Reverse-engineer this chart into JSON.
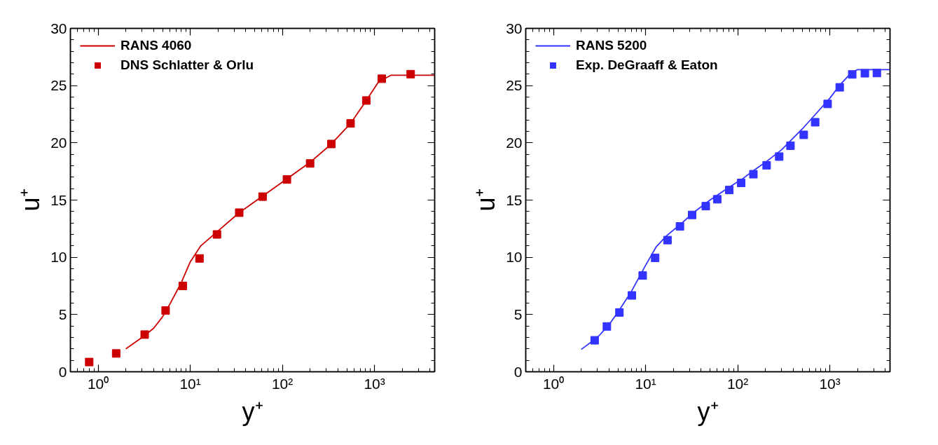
{
  "chart_data": [
    {
      "type": "line",
      "xlabel": "y⁺",
      "ylabel": "u⁺",
      "log": "x",
      "xlim": [
        0.5,
        4500
      ],
      "ylim": [
        0,
        30
      ],
      "xticks": [
        {
          "value": 1,
          "label": "10⁰"
        },
        {
          "value": 10,
          "label": "10¹"
        },
        {
          "value": 100,
          "label": "10²"
        },
        {
          "value": 1000,
          "label": "10³"
        }
      ],
      "yticks": [
        0,
        5,
        10,
        15,
        20,
        25,
        30
      ],
      "grid": false,
      "legend": "top left",
      "series": [
        {
          "name": "RANS 4060",
          "type": "line",
          "color": "#cc0000",
          "line_style": "solid",
          "marker": "none",
          "x": [
            2,
            3,
            4,
            5,
            6,
            8,
            10,
            13,
            20,
            34,
            60,
            110,
            200,
            340,
            550,
            800,
            1100,
            1500,
            4500
          ],
          "values": [
            2.0,
            3.0,
            3.8,
            4.8,
            5.9,
            7.8,
            9.6,
            11.0,
            12.3,
            13.9,
            15.3,
            16.8,
            18.3,
            19.9,
            21.7,
            23.6,
            25.3,
            25.9,
            25.9
          ]
        },
        {
          "name": "DNS Schlatter & Orlu",
          "type": "scatter",
          "color": "#cc0000",
          "marker": "square",
          "x": [
            0.8,
            1.57,
            3.2,
            5.4,
            8.3,
            12.6,
            19.5,
            34,
            61,
            112,
            200,
            340,
            550,
            815,
            1200,
            2470
          ],
          "values": [
            0.85,
            1.6,
            3.25,
            5.35,
            7.5,
            9.9,
            12.0,
            13.9,
            15.3,
            16.8,
            18.2,
            19.9,
            21.7,
            23.7,
            25.6,
            26.0
          ]
        }
      ]
    },
    {
      "type": "line",
      "xlabel": "y⁺",
      "ylabel": "u⁺",
      "log": "x",
      "xlim": [
        0.5,
        4500
      ],
      "ylim": [
        0,
        30
      ],
      "xticks": [
        {
          "value": 1,
          "label": "10⁰"
        },
        {
          "value": 10,
          "label": "10¹"
        },
        {
          "value": 100,
          "label": "10²"
        },
        {
          "value": 1000,
          "label": "10³"
        }
      ],
      "yticks": [
        0,
        5,
        10,
        15,
        20,
        25,
        30
      ],
      "grid": false,
      "legend": "top left",
      "series": [
        {
          "name": "RANS 5200",
          "type": "line",
          "color": "#3333ff",
          "line_style": "solid",
          "marker": "none",
          "x": [
            2,
            3,
            4,
            5,
            7,
            10,
            13,
            17,
            24,
            33,
            50,
            80,
            110,
            150,
            200,
            300,
            500,
            700,
            1000,
            1300,
            1700,
            2000,
            4500
          ],
          "values": [
            1.95,
            3.0,
            4.1,
            5.2,
            7.0,
            9.3,
            10.9,
            11.9,
            12.9,
            13.9,
            15.0,
            16.1,
            16.8,
            17.6,
            18.3,
            19.4,
            21.2,
            22.5,
            23.9,
            25.1,
            26.1,
            26.4,
            26.4
          ]
        },
        {
          "name": "Exp. DeGraaff & Eaton",
          "type": "scatter",
          "color": "#3333ff",
          "marker": "square",
          "x": [
            2.8,
            3.8,
            5.2,
            7.1,
            9.3,
            12.7,
            17.3,
            23.6,
            32,
            45,
            60,
            81,
            109,
            148,
            206,
            282,
            374,
            521,
            693,
            946,
            1280,
            1750,
            2400,
            3240
          ],
          "values": [
            2.75,
            3.96,
            5.18,
            6.67,
            8.41,
            9.95,
            11.5,
            12.7,
            13.7,
            14.47,
            15.07,
            15.88,
            16.5,
            17.26,
            18.04,
            18.8,
            19.75,
            20.7,
            21.8,
            23.4,
            24.85,
            25.98,
            26.08,
            26.1
          ]
        }
      ]
    }
  ]
}
